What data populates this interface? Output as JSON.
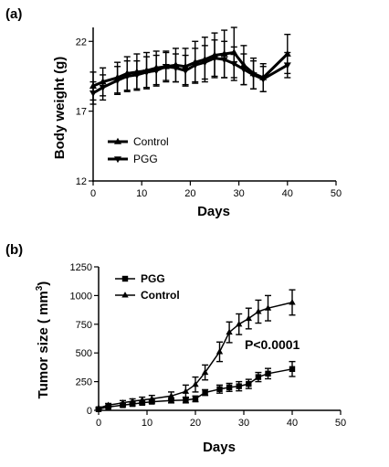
{
  "chart_data": [
    {
      "type": "line",
      "panel_label": "(a)",
      "xlabel": "Days",
      "ylabel": "Body weight (g)",
      "xlim": [
        0,
        50
      ],
      "ylim": [
        12,
        23
      ],
      "xticks": [
        0,
        10,
        20,
        30,
        40,
        50
      ],
      "yticks": [
        12,
        17,
        22
      ],
      "grid": false,
      "legend_position": "bottom-left",
      "series": [
        {
          "name": "Control",
          "marker": "triangle-up",
          "x": [
            0,
            2,
            5,
            7,
            9,
            11,
            13,
            15,
            17,
            19,
            21,
            23,
            25,
            27,
            29,
            31,
            33,
            35,
            40
          ],
          "y": [
            18.8,
            19.1,
            19.4,
            19.7,
            19.8,
            19.9,
            20.1,
            20.2,
            20.3,
            20.2,
            20.5,
            20.7,
            21.0,
            21.1,
            21.2,
            20.3,
            19.7,
            19.4,
            21.1
          ],
          "err": [
            1.0,
            1.0,
            1.1,
            1.2,
            1.3,
            1.3,
            1.2,
            1.1,
            1.2,
            1.3,
            1.5,
            1.6,
            1.6,
            1.7,
            1.8,
            1.4,
            1.1,
            1.0,
            1.4
          ]
        },
        {
          "name": "PGG",
          "marker": "triangle-down",
          "x": [
            0,
            2,
            5,
            7,
            9,
            11,
            13,
            15,
            17,
            19,
            21,
            23,
            25,
            27,
            29,
            31,
            33,
            35,
            40
          ],
          "y": [
            18.3,
            18.7,
            19.2,
            19.5,
            19.6,
            19.8,
            19.9,
            20.2,
            20.1,
            19.9,
            20.3,
            20.5,
            20.8,
            20.7,
            20.4,
            20.0,
            19.6,
            19.3,
            20.3
          ],
          "err": [
            0.8,
            0.9,
            1.0,
            1.1,
            1.0,
            1.1,
            1.1,
            1.0,
            1.0,
            1.1,
            1.2,
            1.2,
            1.3,
            1.3,
            1.2,
            1.1,
            1.0,
            0.9,
            0.9
          ]
        }
      ]
    },
    {
      "type": "line",
      "panel_label": "(b)",
      "xlabel": "Days",
      "ylabel": "Tumor size ( mm",
      "ylabel_sup": "3",
      "ylabel_end": ")",
      "xlim": [
        0,
        50
      ],
      "ylim": [
        0,
        1250
      ],
      "xticks": [
        0,
        10,
        20,
        30,
        40,
        50
      ],
      "yticks": [
        0,
        250,
        500,
        750,
        1000,
        1250
      ],
      "grid": false,
      "legend_position": "top-left",
      "annotation": "P<0.0001",
      "series": [
        {
          "name": "PGG",
          "marker": "square",
          "x": [
            0,
            2,
            5,
            7,
            9,
            11,
            15,
            18,
            20,
            22,
            25,
            27,
            29,
            31,
            33,
            35,
            40
          ],
          "y": [
            10,
            30,
            45,
            55,
            65,
            75,
            85,
            90,
            100,
            155,
            185,
            200,
            210,
            230,
            290,
            320,
            360
          ],
          "err": [
            5,
            10,
            12,
            15,
            15,
            15,
            20,
            25,
            25,
            25,
            35,
            35,
            40,
            40,
            40,
            45,
            65
          ]
        },
        {
          "name": "Control",
          "marker": "triangle-up",
          "x": [
            0,
            2,
            5,
            7,
            9,
            11,
            15,
            18,
            20,
            22,
            25,
            27,
            29,
            31,
            33,
            35,
            40
          ],
          "y": [
            20,
            45,
            65,
            80,
            90,
            100,
            125,
            165,
            225,
            330,
            510,
            680,
            750,
            800,
            860,
            890,
            940
          ],
          "err": [
            5,
            15,
            20,
            20,
            25,
            30,
            35,
            55,
            65,
            65,
            85,
            90,
            90,
            90,
            100,
            110,
            110
          ]
        }
      ]
    }
  ]
}
